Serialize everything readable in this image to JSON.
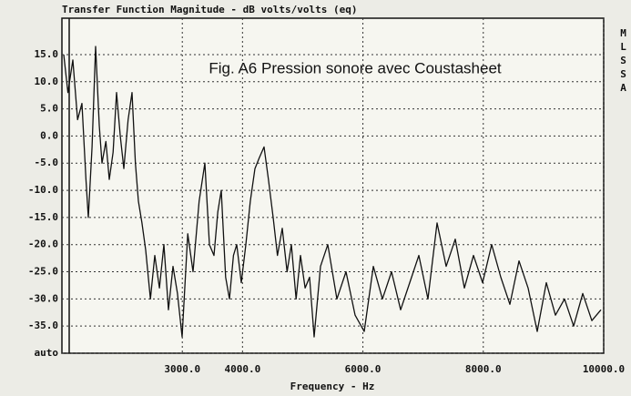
{
  "chart_data": {
    "type": "line",
    "title": "Transfer Function Magnitude - dB volts/volts (eq)",
    "x_label": "Frequency - Hz",
    "annotation": "Fig. A6 Pression sonore avec Coustasheet",
    "side_label": "MLSSA",
    "x": [
      1030,
      1100,
      1182,
      1260,
      1333,
      1400,
      1439,
      1500,
      1560,
      1620,
      1666,
      1730,
      1787,
      1850,
      1908,
      1970,
      2029,
      2100,
      2165,
      2220,
      2271,
      2330,
      2392,
      2470,
      2543,
      2620,
      2694,
      2770,
      2845,
      2920,
      2997,
      3090,
      3178,
      3280,
      3375,
      3450,
      3526,
      3590,
      3647,
      3720,
      3783,
      3850,
      3904,
      3980,
      4055,
      4130,
      4207,
      4280,
      4358,
      4430,
      4509,
      4580,
      4660,
      4740,
      4812,
      4890,
      4963,
      5040,
      5114,
      5190,
      5296,
      5417,
      5568,
      5719,
      5871,
      6022,
      6173,
      6324,
      6476,
      6627,
      6778,
      6929,
      7081,
      7232,
      7383,
      7534,
      7686,
      7837,
      7988,
      8139,
      8291,
      8442,
      8593,
      8745,
      8896,
      9047,
      9198,
      9350,
      9501,
      9652,
      9803,
      9955
    ],
    "series": [
      {
        "name": "magnitude",
        "color": "#111111",
        "values": [
          15,
          8,
          14,
          3,
          6,
          -8,
          -15,
          -2,
          16.5,
          2,
          -5,
          -1,
          -8,
          -3,
          8,
          0,
          -6,
          3,
          8,
          -5,
          -12,
          -16,
          -21,
          -30,
          -22,
          -28,
          -20,
          -32,
          -24,
          -29,
          -37,
          -18,
          -25,
          -12,
          -5,
          -20,
          -22,
          -14,
          -10,
          -26,
          -30,
          -22,
          -20,
          -27,
          -20,
          -12,
          -6,
          -4,
          -2,
          -8,
          -15,
          -22,
          -17,
          -25,
          -20,
          -30,
          -22,
          -28,
          -26,
          -37,
          -24,
          -20,
          -30,
          -25,
          -33,
          -36,
          -24,
          -30,
          -25,
          -32,
          -27,
          -22,
          -30,
          -16,
          -24,
          -19,
          -28,
          -22,
          -27,
          -20,
          -26,
          -31,
          -23,
          -28,
          -36,
          -27,
          -33,
          -30,
          -35,
          -29,
          -34,
          -32
        ]
      }
    ],
    "xlim": [
      1000,
      10000
    ],
    "xticks": [
      {
        "value": 3000,
        "label": "3000.0"
      },
      {
        "value": 4000,
        "label": "4000.0"
      },
      {
        "value": 6000,
        "label": "6000.0"
      },
      {
        "value": 8000,
        "label": "8000.0"
      },
      {
        "value": 10000,
        "label": "10000.0"
      }
    ],
    "ylim": [
      -40,
      21.7
    ],
    "yticks": [
      {
        "value": 15,
        "label": "15.0"
      },
      {
        "value": 10,
        "label": "10.0"
      },
      {
        "value": 5,
        "label": "5.0"
      },
      {
        "value": 0,
        "label": "0.0"
      },
      {
        "value": -5,
        "label": "-5.0"
      },
      {
        "value": -10,
        "label": "-10.0"
      },
      {
        "value": -15,
        "label": "-15.0"
      },
      {
        "value": -20,
        "label": "-20.0"
      },
      {
        "value": -25,
        "label": "-25.0"
      },
      {
        "value": -30,
        "label": "-30.0"
      },
      {
        "value": -35,
        "label": "-35.0"
      },
      {
        "value": -40,
        "label": "auto"
      }
    ],
    "grid": true
  }
}
